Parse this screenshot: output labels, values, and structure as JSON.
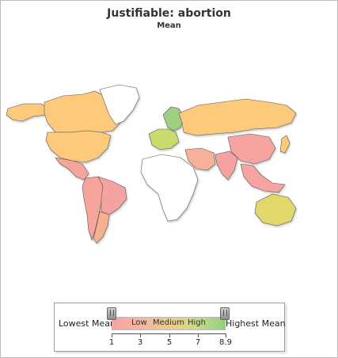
{
  "title": "Justifiable: abortion",
  "subtitle": "Mean",
  "legend": {
    "low_label": "Lowest Mean",
    "high_label": "Highest Mean",
    "scale_words": [
      "Low",
      "Medium",
      "High"
    ],
    "range": [
      1,
      8.9
    ],
    "ticks": [
      "1",
      "3",
      "5",
      "7",
      "8.9"
    ],
    "colors": {
      "low": "#f7a3a3",
      "medium": "#e8d08a",
      "high": "#8fcf7f",
      "no_data": "#ffffff"
    }
  },
  "regions": {
    "canada": "#fdc97a",
    "united-states": "#fdc97a",
    "alaska": "#fdc97a",
    "mexico": "#f6a59c",
    "greenland": "#ffffff",
    "south-america-west": "#f6a59c",
    "brazil": "#f4a3a0",
    "argentina": "#f6b08c",
    "europe-north": "#9fd080",
    "europe-central": "#c8dc6e",
    "russia": "#fdc97a",
    "africa": "#ffffff",
    "middle-east": "#f7b19a",
    "south-asia": "#f6a3a0",
    "china": "#f7a3a0",
    "southeast-asia": "#f7a3a0",
    "australia": "#e0d86a",
    "japan": "#fdc97a"
  }
}
